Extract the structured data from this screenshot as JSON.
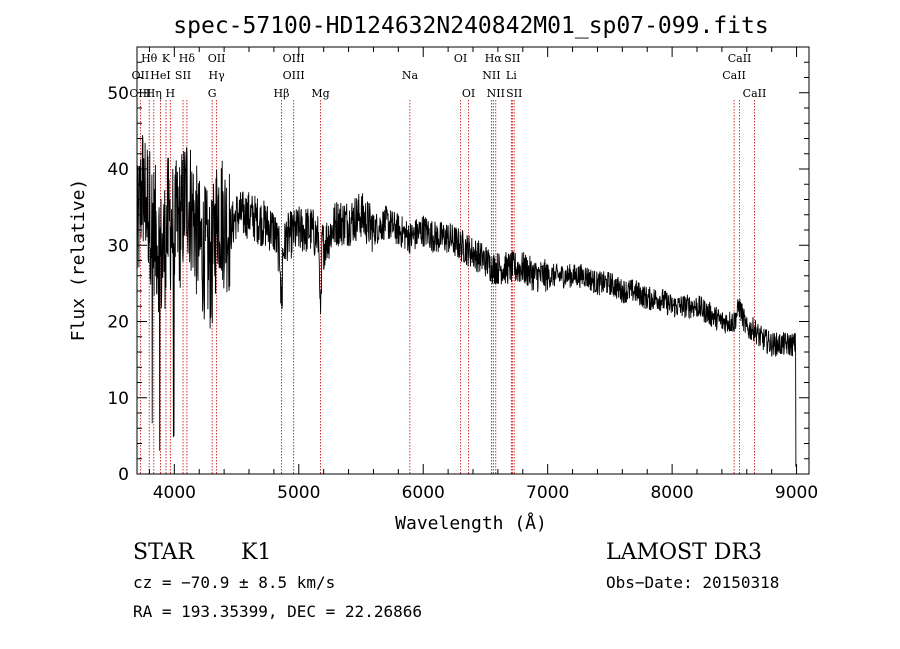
{
  "chart_data": {
    "type": "line",
    "title": "spec-57100-HD124632N240842M01_sp07-099.fits",
    "xlabel": "Wavelength (Å)",
    "ylabel": "Flux (relative)",
    "xlim": [
      3700,
      9100
    ],
    "ylim": [
      0,
      56
    ],
    "xticks": [
      4000,
      5000,
      6000,
      7000,
      8000,
      9000
    ],
    "yticks": [
      0,
      10,
      20,
      30,
      40,
      50
    ],
    "xtick_labels": [
      "4000",
      "5000",
      "6000",
      "7000",
      "8000",
      "9000"
    ],
    "ytick_labels": [
      "0",
      "10",
      "20",
      "30",
      "40",
      "50"
    ],
    "series": [
      {
        "name": "flux",
        "x": [
          3700,
          3740,
          3780,
          3820,
          3860,
          3900,
          3950,
          4000,
          4050,
          4100,
          4150,
          4200,
          4250,
          4300,
          4350,
          4400,
          4450,
          4500,
          4600,
          4700,
          4800,
          4860,
          4900,
          5000,
          5100,
          5200,
          5300,
          5400,
          5500,
          5600,
          5700,
          5800,
          5900,
          6000,
          6100,
          6200,
          6300,
          6400,
          6500,
          6563,
          6600,
          6700,
          6800,
          6900,
          7000,
          7100,
          7200,
          7300,
          7400,
          7500,
          7600,
          7700,
          7800,
          7900,
          8000,
          8100,
          8200,
          8300,
          8400,
          8500,
          8540,
          8600,
          8662,
          8700,
          8800,
          8900,
          9000
        ],
        "y": [
          30,
          38,
          36,
          33,
          31,
          28,
          33,
          32,
          33,
          37,
          34,
          30,
          29,
          27,
          35,
          33,
          32,
          34,
          34,
          33,
          32,
          28,
          31,
          32,
          32,
          30,
          33,
          33,
          34,
          32,
          33,
          32,
          31,
          32,
          31,
          31,
          30,
          29,
          28,
          27,
          27,
          27,
          27,
          26,
          26,
          26,
          26,
          26,
          25,
          25,
          24,
          24,
          23,
          23,
          22,
          22,
          22,
          21,
          20,
          20,
          22,
          19,
          19,
          18,
          17,
          17,
          17
        ]
      }
    ],
    "line_markers": [
      {
        "label": "Hθ",
        "wave": 3798,
        "row": 0
      },
      {
        "label": "K",
        "wave": 3933,
        "row": 0
      },
      {
        "label": "Hδ",
        "wave": 4101,
        "row": 0
      },
      {
        "label": "OII",
        "wave": 4340,
        "row": 0
      },
      {
        "label": "OIII",
        "wave": 4959,
        "row": 0
      },
      {
        "label": "OI",
        "wave": 6300,
        "row": 0
      },
      {
        "label": "Hα",
        "wave": 6563,
        "row": 0
      },
      {
        "label": "SII",
        "wave": 6716,
        "row": 0
      },
      {
        "label": "CaII",
        "wave": 8542,
        "row": 0
      },
      {
        "label": "OII",
        "wave": 3727,
        "row": 1
      },
      {
        "label": "HeI",
        "wave": 3889,
        "row": 1
      },
      {
        "label": "SII",
        "wave": 4070,
        "row": 1
      },
      {
        "label": "Hγ",
        "wave": 4340,
        "row": 1
      },
      {
        "label": "OIII",
        "wave": 4959,
        "row": 1
      },
      {
        "label": "NII",
        "wave": 6548,
        "row": 1
      },
      {
        "label": "Li",
        "wave": 6708,
        "row": 1
      },
      {
        "label": "CaII",
        "wave": 8498,
        "row": 1
      },
      {
        "label": "OIII",
        "wave": 3727,
        "row": 2
      },
      {
        "label": "Hη",
        "wave": 3835,
        "row": 2
      },
      {
        "label": "H",
        "wave": 3968,
        "row": 2
      },
      {
        "label": "G",
        "wave": 4304,
        "row": 2
      },
      {
        "label": "Hβ",
        "wave": 4861,
        "row": 2
      },
      {
        "label": "Mg",
        "wave": 5175,
        "row": 2
      },
      {
        "label": "Na",
        "wave": 5893,
        "row": 1
      },
      {
        "label": "OI",
        "wave": 6364,
        "row": 2
      },
      {
        "label": "NII",
        "wave": 6583,
        "row": 2
      },
      {
        "label": "SII",
        "wave": 6731,
        "row": 2
      },
      {
        "label": "CaII",
        "wave": 8662,
        "row": 2
      }
    ]
  },
  "info": {
    "object_class": "STAR",
    "subclass": "K1",
    "survey": "LAMOST DR3",
    "cz": "cz = −70.9 ± 8.5 km/s",
    "obs_date": "Obs−Date: 20150318",
    "coords": "RA = 193.35399, DEC =  22.26866"
  }
}
